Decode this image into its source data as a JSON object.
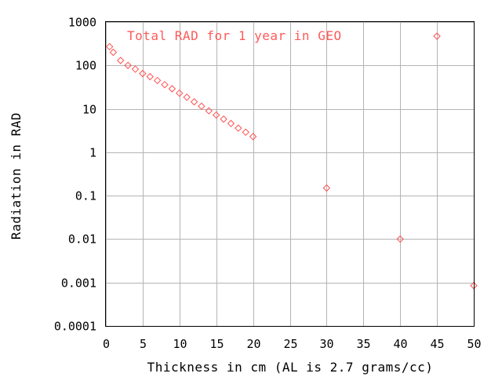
{
  "chart_data": {
    "type": "scatter",
    "title": "",
    "xlabel": "Thickness in cm (AL is 2.7 grams/cc)",
    "ylabel": "Radiation in RAD",
    "xlim": [
      0,
      50
    ],
    "ylim": [
      0.0001,
      1000
    ],
    "yscale": "log",
    "grid": true,
    "legend_position": "top",
    "x_ticks": [
      "0",
      "5",
      "10",
      "15",
      "20",
      "25",
      "30",
      "35",
      "40",
      "45",
      "50"
    ],
    "y_ticks": [
      "0.0001",
      "0.001",
      "0.01",
      "0.1",
      "1",
      "10",
      "100",
      "1000"
    ],
    "series": [
      {
        "name": "Total RAD for 1 year in GEO",
        "color": "#ff5050",
        "marker": "diamond",
        "x": [
          0.5,
          1,
          2,
          3,
          4,
          5,
          6,
          7,
          8,
          9,
          10,
          11,
          12,
          13,
          14,
          15,
          16,
          17,
          18,
          19,
          20,
          30,
          40,
          45,
          50
        ],
        "y": [
          270,
          200,
          130,
          100,
          82,
          65,
          55,
          45,
          36,
          29,
          23,
          18.5,
          14.5,
          11.5,
          9.0,
          7.2,
          5.8,
          4.6,
          3.6,
          2.9,
          2.3,
          0.15,
          0.01,
          470,
          0.00085
        ]
      }
    ]
  }
}
